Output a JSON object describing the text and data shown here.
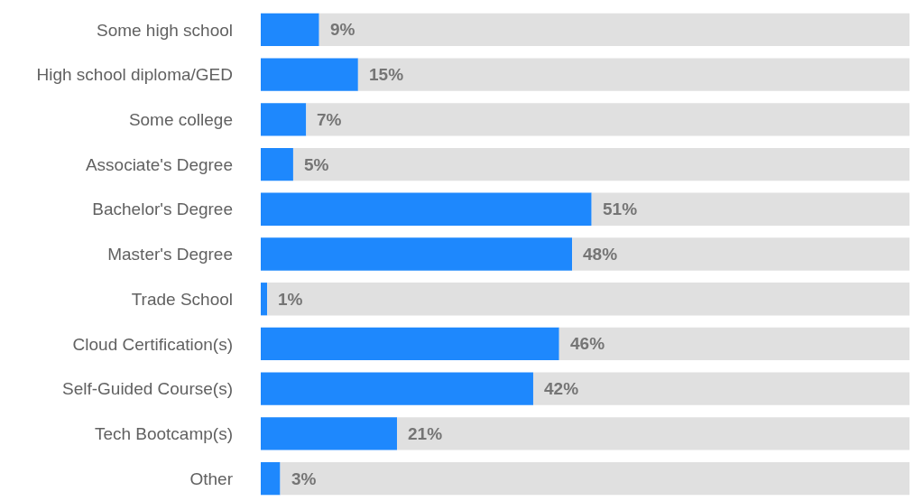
{
  "chart_data": {
    "type": "bar",
    "orientation": "horizontal",
    "stacked": true,
    "categories": [
      "Some high school",
      "High school diploma/GED",
      "Some college",
      "Associate's Degree",
      "Bachelor's Degree",
      "Master's Degree",
      "Trade School",
      "Cloud Certification(s)",
      "Self-Guided Course(s)",
      "Tech Bootcamp(s)",
      "Other"
    ],
    "series": [
      {
        "color": "#1e88fd",
        "values": [
          9,
          15,
          7,
          5,
          51,
          48,
          1,
          46,
          42,
          21,
          3
        ],
        "value_labels": [
          "9%",
          "15%",
          "7%",
          "5%",
          "51%",
          "48%",
          "1%",
          "46%",
          "42%",
          "21%",
          "3%"
        ]
      },
      {
        "color": "#e0e0e0",
        "values": [
          91,
          85,
          93,
          95,
          49,
          52,
          99,
          54,
          58,
          79,
          97
        ]
      }
    ],
    "xlim": [
      0,
      100
    ],
    "tick_labels": "y"
  }
}
